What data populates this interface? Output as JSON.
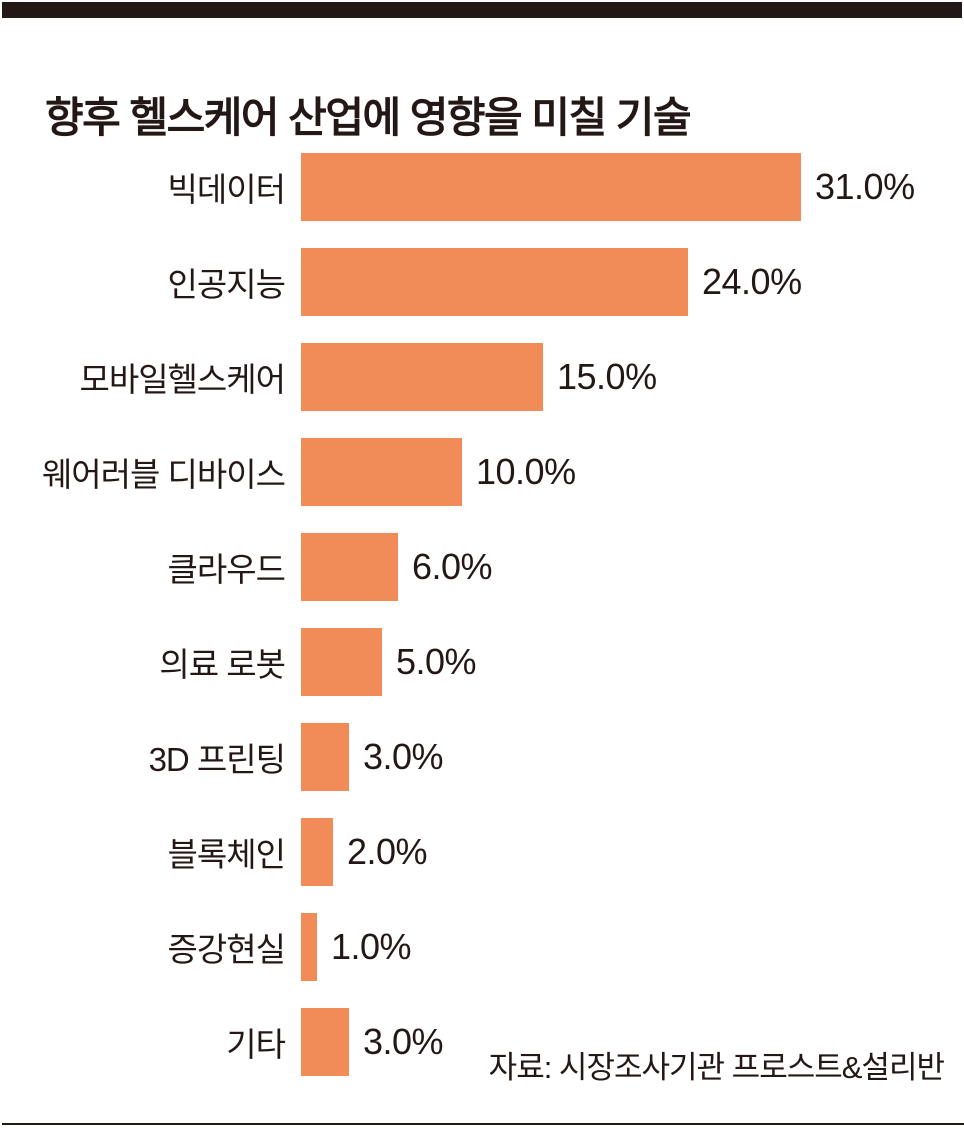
{
  "page": {
    "title": "향후 헬스케어 산업에 영향을 미칠 기술",
    "source_note": "자료: 시장조사기관 프로스트&설리반"
  },
  "colors": {
    "bar": "#F18C58",
    "ink": "#231815",
    "background": "#FFFFFF"
  },
  "chart_data": {
    "type": "bar",
    "orientation": "horizontal",
    "title": "향후 헬스케어 산업에 영향을 미칠 기술",
    "xlabel": "",
    "ylabel": "",
    "unit": "%",
    "xlim": [
      0,
      31
    ],
    "grid": false,
    "legend": false,
    "categories": [
      "빅데이터",
      "인공지능",
      "모바일헬스케어",
      "웨어러블 디바이스",
      "클라우드",
      "의료 로봇",
      "3D 프린팅",
      "블록체인",
      "증강현실",
      "기타"
    ],
    "values": [
      31.0,
      24.0,
      15.0,
      10.0,
      6.0,
      5.0,
      3.0,
      2.0,
      1.0,
      3.0
    ],
    "value_labels": [
      "31.0%",
      "24.0%",
      "15.0%",
      "10.0%",
      "6.0%",
      "5.0%",
      "3.0%",
      "2.0%",
      "1.0%",
      "3.0%"
    ],
    "annotations": [
      "자료: 시장조사기관 프로스트&설리반"
    ]
  }
}
